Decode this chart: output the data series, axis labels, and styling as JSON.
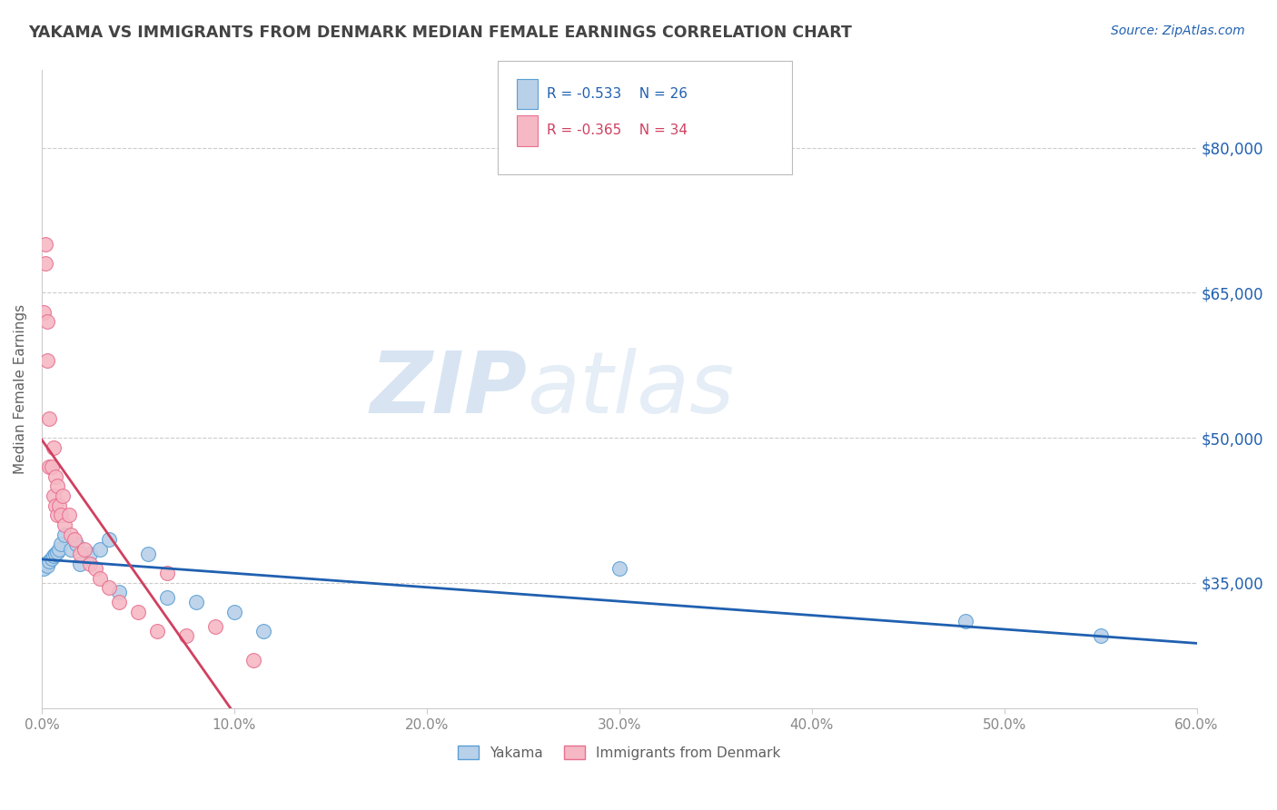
{
  "title": "YAKAMA VS IMMIGRANTS FROM DENMARK MEDIAN FEMALE EARNINGS CORRELATION CHART",
  "source_text": "Source: ZipAtlas.com",
  "ylabel": "Median Female Earnings",
  "watermark_zip": "ZIP",
  "watermark_atlas": "atlas",
  "xlim": [
    0.0,
    0.6
  ],
  "ylim": [
    22000,
    88000
  ],
  "xtick_labels": [
    "0.0%",
    "10.0%",
    "20.0%",
    "30.0%",
    "40.0%",
    "50.0%",
    "60.0%"
  ],
  "xtick_values": [
    0.0,
    0.1,
    0.2,
    0.3,
    0.4,
    0.5,
    0.6
  ],
  "ytick_values": [
    35000,
    50000,
    65000,
    80000
  ],
  "ytick_labels": [
    "$35,000",
    "$50,000",
    "$65,000",
    "$80,000"
  ],
  "yakama_color": "#b8d0e8",
  "denmark_color": "#f5b8c4",
  "yakama_edge_color": "#5a9fd4",
  "denmark_edge_color": "#e87090",
  "yakama_line_color": "#2060b0",
  "denmark_line_color": "#d04060",
  "legend_label_yakama": "Yakama",
  "legend_label_denmark": "Immigrants from Denmark",
  "yakama_x": [
    0.001,
    0.002,
    0.003,
    0.004,
    0.005,
    0.006,
    0.007,
    0.008,
    0.009,
    0.01,
    0.012,
    0.015,
    0.018,
    0.02,
    0.025,
    0.03,
    0.035,
    0.04,
    0.055,
    0.065,
    0.08,
    0.1,
    0.115,
    0.3,
    0.48,
    0.55
  ],
  "yakama_y": [
    36500,
    37000,
    36800,
    37200,
    37500,
    37800,
    38000,
    38200,
    38500,
    39000,
    40000,
    38500,
    39000,
    37000,
    38000,
    38500,
    39500,
    34000,
    38000,
    33500,
    33000,
    32000,
    30000,
    36500,
    31000,
    29500
  ],
  "denmark_x": [
    0.001,
    0.002,
    0.002,
    0.003,
    0.003,
    0.004,
    0.004,
    0.005,
    0.006,
    0.006,
    0.007,
    0.007,
    0.008,
    0.008,
    0.009,
    0.01,
    0.011,
    0.012,
    0.014,
    0.015,
    0.017,
    0.02,
    0.022,
    0.025,
    0.028,
    0.03,
    0.035,
    0.04,
    0.05,
    0.06,
    0.065,
    0.075,
    0.09,
    0.11
  ],
  "denmark_y": [
    63000,
    68000,
    70000,
    58000,
    62000,
    47000,
    52000,
    47000,
    44000,
    49000,
    43000,
    46000,
    42000,
    45000,
    43000,
    42000,
    44000,
    41000,
    42000,
    40000,
    39500,
    38000,
    38500,
    37000,
    36500,
    35500,
    34500,
    33000,
    32000,
    30000,
    36000,
    29500,
    30500,
    27000
  ],
  "background_color": "#ffffff",
  "grid_color": "#cccccc",
  "title_color": "#444444",
  "axis_label_color": "#606060",
  "source_color": "#2060b0",
  "right_tick_color": "#2060b0"
}
